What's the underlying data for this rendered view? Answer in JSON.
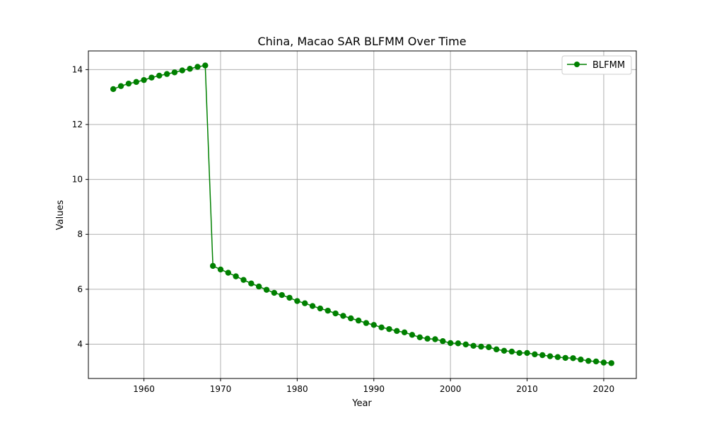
{
  "chart_data": {
    "type": "line",
    "title": "China, Macao SAR BLFMM Over Time",
    "xlabel": "Year",
    "ylabel": "Values",
    "xlim": [
      1952.75,
      2024.25
    ],
    "ylim": [
      2.75,
      14.68
    ],
    "x_ticks": [
      1960,
      1970,
      1980,
      1990,
      2000,
      2010,
      2020
    ],
    "y_ticks": [
      4,
      6,
      8,
      10,
      12,
      14
    ],
    "grid": true,
    "legend_position": "top-right",
    "series": [
      {
        "name": "BLFMM",
        "color": "#008000",
        "marker": "circle",
        "x": [
          1956,
          1957,
          1958,
          1959,
          1960,
          1961,
          1962,
          1963,
          1964,
          1965,
          1966,
          1967,
          1968,
          1969,
          1970,
          1971,
          1972,
          1973,
          1974,
          1975,
          1976,
          1977,
          1978,
          1979,
          1980,
          1981,
          1982,
          1983,
          1984,
          1985,
          1986,
          1987,
          1988,
          1989,
          1990,
          1991,
          1992,
          1993,
          1994,
          1995,
          1996,
          1997,
          1998,
          1999,
          2000,
          2001,
          2002,
          2003,
          2004,
          2005,
          2006,
          2007,
          2008,
          2009,
          2010,
          2011,
          2012,
          2013,
          2014,
          2015,
          2016,
          2017,
          2018,
          2019,
          2020,
          2021
        ],
        "y": [
          13.29,
          13.4,
          13.49,
          13.55,
          13.62,
          13.71,
          13.78,
          13.84,
          13.9,
          13.97,
          14.03,
          14.1,
          14.15,
          6.85,
          6.72,
          6.6,
          6.47,
          6.34,
          6.21,
          6.1,
          5.98,
          5.87,
          5.79,
          5.69,
          5.57,
          5.49,
          5.39,
          5.3,
          5.22,
          5.12,
          5.03,
          4.94,
          4.86,
          4.77,
          4.7,
          4.61,
          4.55,
          4.48,
          4.43,
          4.34,
          4.25,
          4.2,
          4.18,
          4.11,
          4.04,
          4.03,
          3.99,
          3.94,
          3.91,
          3.89,
          3.81,
          3.76,
          3.73,
          3.68,
          3.68,
          3.63,
          3.6,
          3.56,
          3.53,
          3.5,
          3.49,
          3.44,
          3.39,
          3.37,
          3.33,
          3.31
        ]
      }
    ]
  }
}
